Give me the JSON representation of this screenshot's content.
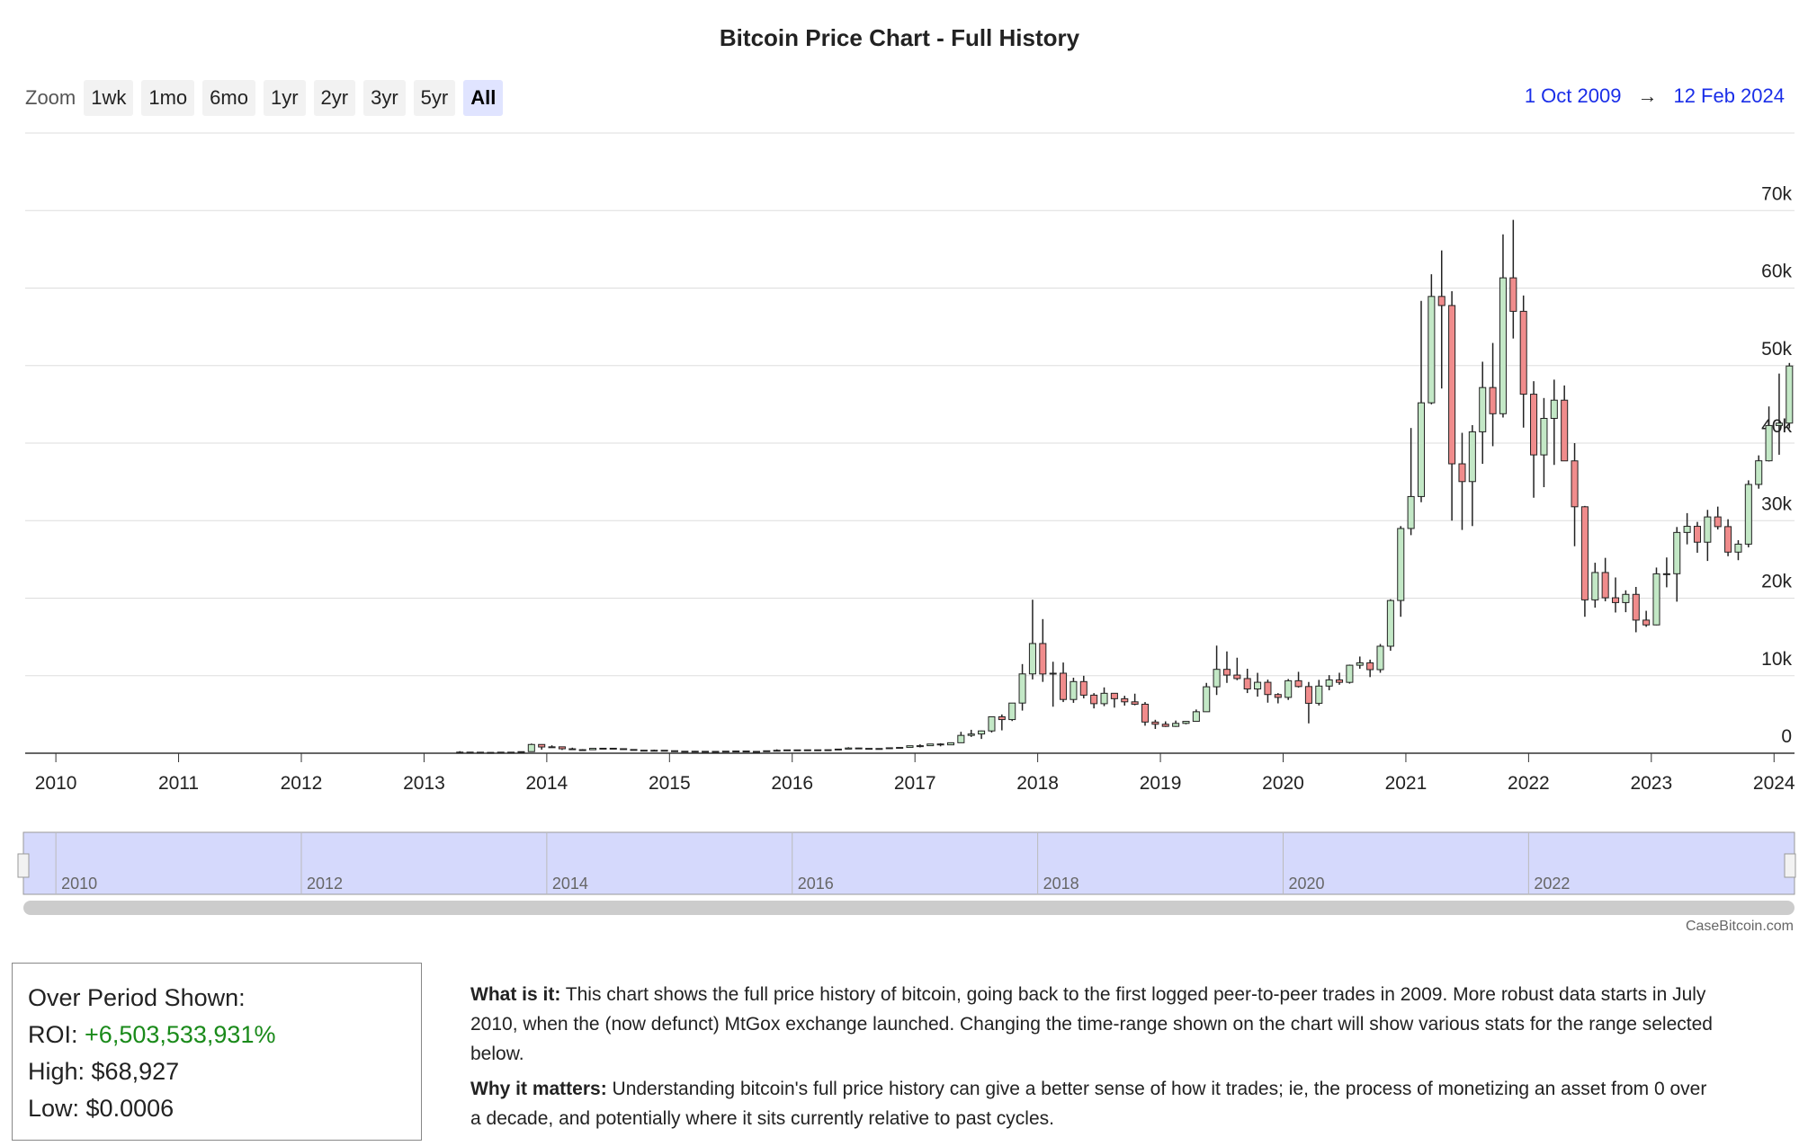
{
  "chart_data": {
    "type": "candlestick",
    "title": "Bitcoin Price Chart - Full History",
    "x": [
      "2013-04",
      "2013-05",
      "2013-06",
      "2013-07",
      "2013-08",
      "2013-09",
      "2013-10",
      "2013-11",
      "2013-12",
      "2014-01",
      "2014-02",
      "2014-03",
      "2014-04",
      "2014-05",
      "2014-06",
      "2014-07",
      "2014-08",
      "2014-09",
      "2014-10",
      "2014-11",
      "2014-12",
      "2015-01",
      "2015-02",
      "2015-03",
      "2015-04",
      "2015-05",
      "2015-06",
      "2015-07",
      "2015-08",
      "2015-09",
      "2015-10",
      "2015-11",
      "2015-12",
      "2016-01",
      "2016-02",
      "2016-03",
      "2016-04",
      "2016-05",
      "2016-06",
      "2016-07",
      "2016-08",
      "2016-09",
      "2016-10",
      "2016-11",
      "2016-12",
      "2017-01",
      "2017-02",
      "2017-03",
      "2017-04",
      "2017-05",
      "2017-06",
      "2017-07",
      "2017-08",
      "2017-09",
      "2017-10",
      "2017-11",
      "2017-12",
      "2018-01",
      "2018-02",
      "2018-03",
      "2018-04",
      "2018-05",
      "2018-06",
      "2018-07",
      "2018-08",
      "2018-09",
      "2018-10",
      "2018-11",
      "2018-12",
      "2019-01",
      "2019-02",
      "2019-03",
      "2019-04",
      "2019-05",
      "2019-06",
      "2019-07",
      "2019-08",
      "2019-09",
      "2019-10",
      "2019-11",
      "2019-12",
      "2020-01",
      "2020-02",
      "2020-03",
      "2020-04",
      "2020-05",
      "2020-06",
      "2020-07",
      "2020-08",
      "2020-09",
      "2020-10",
      "2020-11",
      "2020-12",
      "2021-01",
      "2021-02",
      "2021-03",
      "2021-04",
      "2021-05",
      "2021-06",
      "2021-07",
      "2021-08",
      "2021-09",
      "2021-10",
      "2021-11",
      "2021-12",
      "2022-01",
      "2022-02",
      "2022-03",
      "2022-04",
      "2022-05",
      "2022-06",
      "2022-07",
      "2022-08",
      "2022-09",
      "2022-10",
      "2022-11",
      "2022-12",
      "2023-01",
      "2023-02",
      "2023-03",
      "2023-04",
      "2023-05",
      "2023-06",
      "2023-07",
      "2023-08",
      "2023-09",
      "2023-10",
      "2023-11",
      "2023-12",
      "2024-01",
      "2024-02"
    ],
    "open": [
      93,
      139,
      129,
      97,
      106,
      135,
      133,
      204,
      1129,
      805,
      829,
      573,
      457,
      448,
      630,
      640,
      585,
      480,
      387,
      338,
      378,
      320,
      218,
      254,
      244,
      236,
      230,
      263,
      284,
      230,
      236,
      314,
      377,
      430,
      368,
      437,
      416,
      448,
      531,
      673,
      624,
      573,
      609,
      700,
      745,
      963,
      970,
      1190,
      1080,
      1350,
      2300,
      2480,
      2875,
      4700,
      4340,
      6470,
      10230,
      14150,
      10220,
      10320,
      6930,
      9240,
      7490,
      6390,
      7730,
      7030,
      6630,
      6320,
      4020,
      3740,
      3460,
      3850,
      4110,
      5350,
      8570,
      10820,
      10080,
      9630,
      8290,
      9150,
      7570,
      7200,
      9350,
      8600,
      6440,
      8660,
      9460,
      9140,
      11350,
      11660,
      10780,
      13800,
      19700,
      28990,
      33110,
      45200,
      58920,
      57750,
      37330,
      35040,
      41460,
      47170,
      43790,
      61320,
      57000,
      46310,
      38480,
      43190,
      45540,
      37710,
      31790,
      19780,
      23310,
      20050,
      19430,
      20490,
      17170,
      16550,
      23140,
      23150,
      28480,
      29270,
      27220,
      30480,
      29230,
      25940,
      26970,
      34670,
      37720,
      42270,
      42580
    ],
    "high": [
      266,
      140,
      130,
      111,
      140,
      145,
      222,
      1242,
      1163,
      1020,
      860,
      718,
      530,
      630,
      680,
      655,
      600,
      500,
      415,
      455,
      400,
      320,
      270,
      300,
      260,
      248,
      268,
      315,
      285,
      245,
      335,
      500,
      465,
      460,
      445,
      440,
      465,
      545,
      780,
      705,
      630,
      625,
      710,
      755,
      980,
      1150,
      1210,
      1290,
      1350,
      2760,
      3020,
      2920,
      4740,
      5000,
      6470,
      11500,
      19800,
      17300,
      11800,
      11700,
      9740,
      9990,
      7750,
      8490,
      7760,
      7410,
      7680,
      6600,
      4310,
      4110,
      4210,
      4140,
      5640,
      9070,
      13880,
      13130,
      12320,
      10900,
      10370,
      9500,
      7750,
      9570,
      10500,
      9190,
      9460,
      10070,
      10380,
      11430,
      12470,
      12070,
      14090,
      19860,
      29300,
      41950,
      58350,
      61780,
      64860,
      59590,
      41330,
      42320,
      50500,
      52920,
      66930,
      68790,
      59040,
      47990,
      45820,
      48190,
      47440,
      40000,
      31900,
      24570,
      25200,
      22670,
      21010,
      21450,
      18370,
      23950,
      25250,
      29180,
      30970,
      29840,
      31390,
      31810,
      30180,
      27480,
      35200,
      38420,
      44730,
      48970,
      50340
    ],
    "low": [
      50,
      97,
      89,
      65,
      102,
      118,
      105,
      204,
      455,
      750,
      420,
      440,
      340,
      420,
      550,
      565,
      450,
      370,
      275,
      310,
      310,
      170,
      210,
      235,
      210,
      228,
      218,
      255,
      200,
      225,
      235,
      300,
      350,
      355,
      365,
      400,
      412,
      440,
      520,
      605,
      470,
      570,
      600,
      680,
      745,
      750,
      940,
      890,
      1060,
      1350,
      2100,
      1840,
      2670,
      2950,
      4150,
      5500,
      9520,
      9200,
      6000,
      6600,
      6500,
      7080,
      5780,
      6070,
      5880,
      6140,
      6180,
      3550,
      3130,
      3390,
      3400,
      3730,
      4090,
      5330,
      7510,
      9070,
      9420,
      7760,
      7300,
      6520,
      6430,
      6870,
      8470,
      3850,
      6150,
      8120,
      8830,
      8980,
      10900,
      9820,
      10380,
      13220,
      17600,
      28130,
      32380,
      45000,
      47050,
      30000,
      28800,
      29300,
      37330,
      39600,
      43300,
      53500,
      42000,
      32950,
      34320,
      37190,
      37700,
      26700,
      17600,
      18780,
      19600,
      18150,
      18190,
      15600,
      16300,
      16500,
      21400,
      19550,
      26940,
      25860,
      24800,
      28860,
      25410,
      24900,
      26560,
      34120,
      37630,
      38500,
      41900
    ],
    "close": [
      139,
      129,
      97,
      106,
      135,
      133,
      204,
      1129,
      805,
      829,
      573,
      457,
      448,
      630,
      640,
      585,
      480,
      387,
      338,
      378,
      320,
      218,
      254,
      244,
      236,
      230,
      263,
      284,
      230,
      236,
      314,
      377,
      430,
      368,
      437,
      416,
      448,
      531,
      673,
      624,
      573,
      609,
      700,
      745,
      963,
      970,
      1190,
      1080,
      1350,
      2300,
      2480,
      2875,
      4700,
      4340,
      6470,
      10230,
      14150,
      10220,
      10320,
      6930,
      9240,
      7490,
      6390,
      7730,
      7030,
      6630,
      6320,
      4020,
      3740,
      3460,
      3850,
      4110,
      5350,
      8570,
      10820,
      10080,
      9630,
      8290,
      9150,
      7570,
      7200,
      9350,
      8600,
      6440,
      8660,
      9460,
      9140,
      11350,
      11660,
      10780,
      13800,
      19700,
      28990,
      33110,
      45200,
      58920,
      57750,
      37330,
      35040,
      41460,
      47170,
      43790,
      61320,
      57000,
      46310,
      38480,
      43190,
      45540,
      37710,
      31790,
      19780,
      23310,
      20050,
      19430,
      20490,
      17170,
      16550,
      23140,
      23150,
      28480,
      29270,
      27220,
      30480,
      29230,
      25940,
      26970,
      34670,
      37720,
      42270,
      42580,
      49950
    ],
    "up_color": "#c3e8c6",
    "down_color": "#f08c8c",
    "xlim": [
      "2009-10",
      "2024-03"
    ],
    "xticks": [
      "2010",
      "2011",
      "2012",
      "2013",
      "2014",
      "2015",
      "2016",
      "2017",
      "2018",
      "2019",
      "2020",
      "2021",
      "2022",
      "2023",
      "2024"
    ],
    "ylim": [
      0,
      80000
    ],
    "yticks": [
      0,
      {
        "value": 10000,
        "label": "10k"
      },
      {
        "value": 20000,
        "label": "20k"
      },
      {
        "value": 30000,
        "label": "30k"
      },
      {
        "value": 40000,
        "label": "40k"
      },
      {
        "value": 50000,
        "label": "50k"
      },
      {
        "value": 60000,
        "label": "60k"
      },
      {
        "value": 70000,
        "label": "70k"
      }
    ],
    "grid": true,
    "navigator_ticks": [
      "2010",
      "2012",
      "2014",
      "2016",
      "2018",
      "2020",
      "2022"
    ],
    "credit": "CaseBitcoin.com"
  },
  "toolbar": {
    "zoom_label": "Zoom",
    "buttons": [
      "1wk",
      "1mo",
      "6mo",
      "1yr",
      "2yr",
      "3yr",
      "5yr",
      "All"
    ],
    "active": "All",
    "range_from": "1 Oct 2009",
    "range_arrow": "→",
    "range_to": "12 Feb 2024"
  },
  "stats": {
    "title": "Over Period Shown:",
    "roi_label": "ROI:",
    "roi": "+6,503,533,931%",
    "high": "High: $68,927",
    "low": "Low: $0.0006"
  },
  "description": [
    {
      "lead": "What is it:",
      "text": " This chart shows the full price history of bitcoin, going back to the first logged peer-to-peer trades in 2009. More robust data starts in July 2010, when the (now defunct) MtGox exchange launched. Changing the time-range shown on the chart will show various stats for the range selected below."
    },
    {
      "lead": "Why it matters:",
      "text": " Understanding bitcoin's full price history can give a better sense of how it trades; ie, the process of monetizing an asset from 0 over a decade, and potentially where it sits currently relative to past cycles."
    }
  ]
}
